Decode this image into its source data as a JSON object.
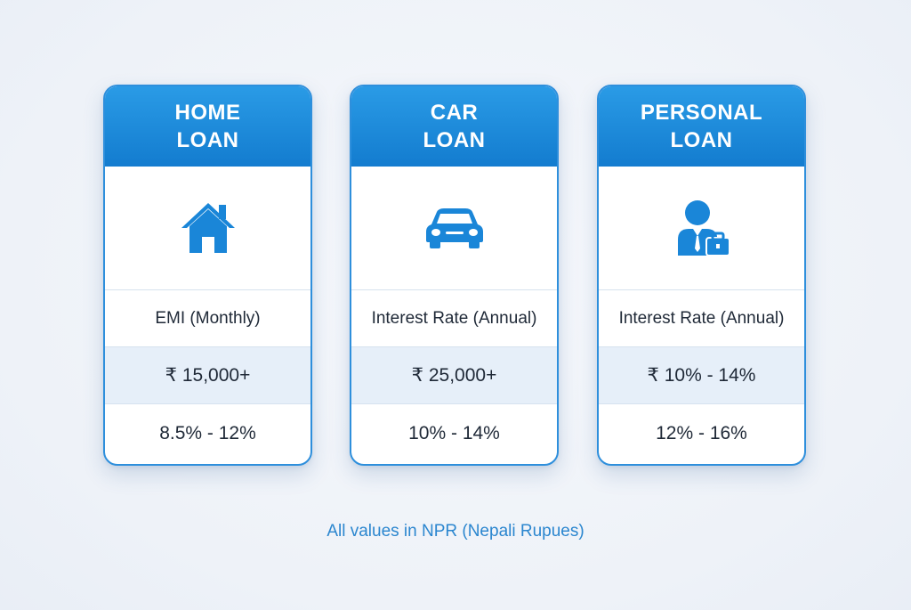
{
  "brand_color": "#1a86d8",
  "cards": [
    {
      "title_line1": "HOME",
      "title_line2": "LOAN",
      "icon": "house-icon",
      "label": "EMI (Monthly)",
      "value": "₹ 15,000+",
      "range": "8.5% - 12%"
    },
    {
      "title_line1": "CAR",
      "title_line2": "LOAN",
      "icon": "car-icon",
      "label": "Interest Rate (Annual)",
      "value": "₹ 25,000+",
      "range": "10% - 14%"
    },
    {
      "title_line1": "PERSONAL",
      "title_line2": "LOAN",
      "icon": "businessperson-icon",
      "label": "Interest Rate (Annual)",
      "value": "₹ 10% - 14%",
      "range": "12% - 16%"
    }
  ],
  "footnote": "All values in NPR (Nepali Rupues)"
}
